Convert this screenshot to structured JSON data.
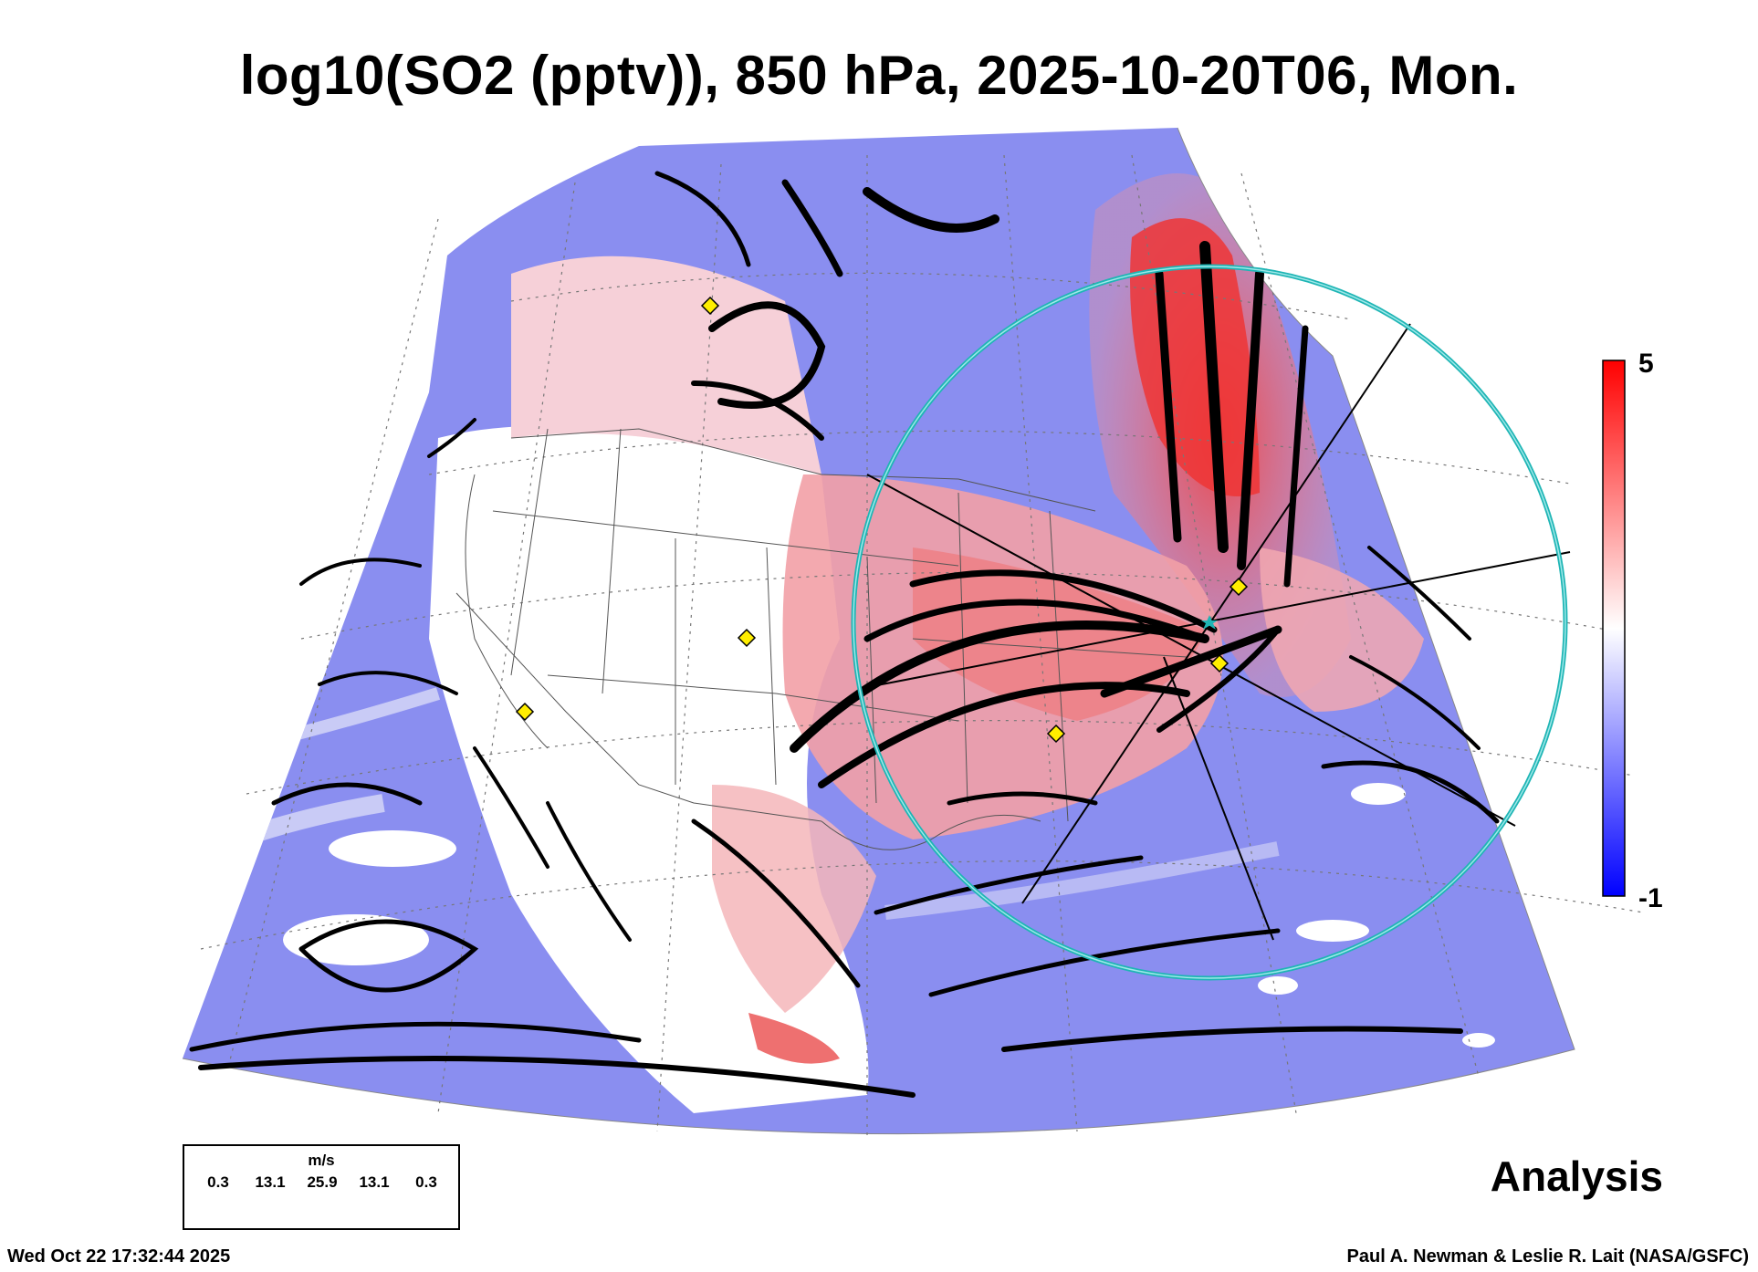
{
  "title": "log10(SO2 (pptv)), 850 hPa, 2025-10-20T06, Mon.",
  "colorbar": {
    "max_label": "5",
    "min_label": "-1",
    "low_color": "#0000ff",
    "mid_color": "#ffffff",
    "high_color": "#ff0000"
  },
  "legend": {
    "unit": "m/s",
    "ticks": [
      "0.3",
      "13.1",
      "25.9",
      "13.1",
      "0.3"
    ]
  },
  "stamp": "Analysis",
  "footer": {
    "timestamp": "Wed Oct 22 17:32:44 2025",
    "credit": "Paul A. Newman & Leslie R. Lait (NASA/GSFC)"
  },
  "map": {
    "projection": "conic",
    "variable": "log10(SO2 (pptv))",
    "level": "850 hPa",
    "colors": {
      "ring": "#1fb5b5",
      "marker": "#ffee00",
      "streamline": "#000000",
      "boundary": "#555555"
    }
  }
}
